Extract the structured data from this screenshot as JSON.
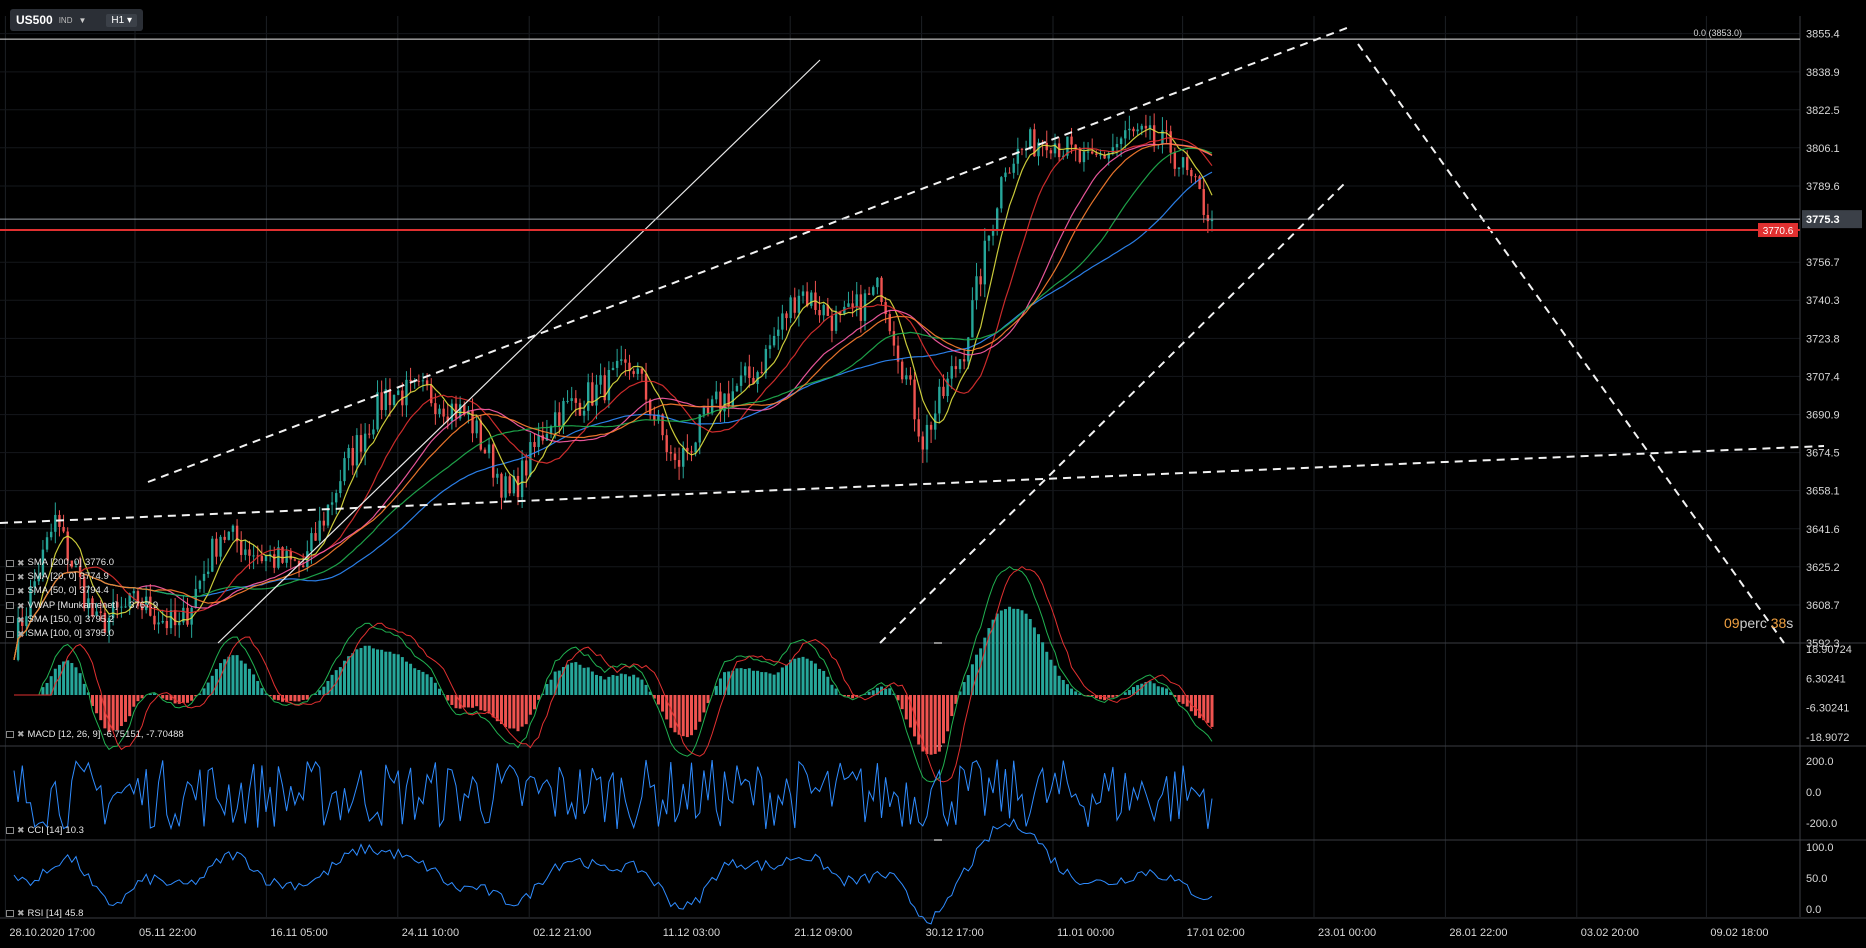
{
  "symbol": {
    "name": "US500",
    "type": "IND",
    "timeframe": "H1"
  },
  "price_axis": {
    "ticks": [
      "3855.4",
      "3838.9",
      "3822.5",
      "3806.1",
      "3789.6",
      "3756.7",
      "3740.3",
      "3723.8",
      "3707.4",
      "3690.9",
      "3674.5",
      "3658.1",
      "3641.6",
      "3625.2",
      "3608.7",
      "3592.3"
    ],
    "current": "3775.3",
    "horizontal_line": "3770.6",
    "fib_label": "0.0 (3853.0)"
  },
  "time_axis": [
    "28.10.2020  17:00",
    "05.11  22:00",
    "16.11  05:00",
    "24.11  10:00",
    "02.12  21:00",
    "11.12  03:00",
    "21.12  09:00",
    "30.12  17:00",
    "11.01  00:00",
    "17.01  02:00",
    "23.01  00:00",
    "28.01  22:00",
    "03.02  20:00",
    "09.02  18:00"
  ],
  "indicators_main": [
    {
      "name": "SMA [200, 0]",
      "value": "3776.0"
    },
    {
      "name": "SMA [20, 0]",
      "value": "3774.9"
    },
    {
      "name": "SMA [50, 0]",
      "value": "3794.4"
    },
    {
      "name": "VWAP [Munkamenet]",
      "value": "3767.9"
    },
    {
      "name": "SMA [150, 0]",
      "value": "3795.2"
    },
    {
      "name": "SMA [100, 0]",
      "value": "3795.0"
    }
  ],
  "macd": {
    "label": "MACD [12, 26, 9]",
    "values": "-6.75151,  -7.70488",
    "ticks": [
      "18.90724",
      "6.30241",
      "-6.30241",
      "-18.9072"
    ]
  },
  "cci": {
    "label": "CCI [14]",
    "value": "10.3",
    "ticks": [
      "200.0",
      "0.0",
      "-200.0"
    ]
  },
  "rsi": {
    "label": "RSI [14]",
    "value": "45.8",
    "ticks": [
      "100.0",
      "50.0",
      "0.0"
    ]
  },
  "timer": {
    "minutes": "09",
    "min_word": "perc",
    "seconds": "38",
    "sec_unit": "s"
  },
  "colors": {
    "up": "#26a69a",
    "down": "#ef5350",
    "line": "#e03030",
    "accent": "#f0a040"
  },
  "chart_data": {
    "type": "candlestick",
    "title": "US500",
    "x_range": [
      "28.10.2020 17:00",
      "09.02 18:00"
    ],
    "ylim": [
      3592.3,
      3863.0
    ],
    "close_path": [
      [
        "28.10.2020 17:00",
        3592
      ],
      [
        "05.11 22:00",
        3645
      ],
      [
        "09.11",
        3600
      ],
      [
        "16.11 05:00",
        3610
      ],
      [
        "20.11",
        3598
      ],
      [
        "24.11 10:00",
        3640
      ],
      [
        "27.11",
        3630
      ],
      [
        "30.11",
        3625
      ],
      [
        "02.12 21:00",
        3668
      ],
      [
        "04.12",
        3700
      ],
      [
        "08.12",
        3700
      ],
      [
        "09.12",
        3690
      ],
      [
        "11.12 03:00",
        3655
      ],
      [
        "14.12",
        3690
      ],
      [
        "16.12",
        3700
      ],
      [
        "18.12",
        3712
      ],
      [
        "21.12 09:00",
        3668
      ],
      [
        "23.12",
        3695
      ],
      [
        "25.12",
        3710
      ],
      [
        "28.12",
        3745
      ],
      [
        "30.12 17:00",
        3730
      ],
      [
        "01.01",
        3746
      ],
      [
        "04.01",
        3680
      ],
      [
        "06.01",
        3720
      ],
      [
        "07.01",
        3800
      ],
      [
        "08.01",
        3812
      ],
      [
        "11.01 00:00",
        3798
      ],
      [
        "13.01",
        3812
      ],
      [
        "14.01",
        3806
      ],
      [
        "15.01",
        3775
      ]
    ],
    "sma": [
      {
        "name": "SMA [200, 0]",
        "last": 3776.0
      },
      {
        "name": "SMA [20, 0]",
        "last": 3774.9
      },
      {
        "name": "SMA [50, 0]",
        "last": 3794.4
      },
      {
        "name": "VWAP [Munkamenet]",
        "last": 3767.9
      },
      {
        "name": "SMA [150, 0]",
        "last": 3795.2
      },
      {
        "name": "SMA [100, 0]",
        "last": 3795.0
      }
    ],
    "horizontal_lines": [
      3853.0,
      3775.3,
      3770.6
    ],
    "annotations": [
      "0.0 (3853.0)"
    ]
  }
}
